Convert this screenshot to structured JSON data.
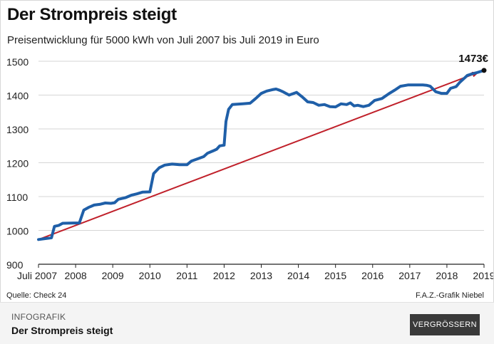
{
  "header": {
    "title": "Der Strompreis steigt",
    "subtitle": "Preisentwicklung für 5000 kWh von Juli 2007 bis Juli 2019 in Euro"
  },
  "chart_data": {
    "type": "line",
    "title": "Der Strompreis steigt",
    "subtitle": "Preisentwicklung für 5000 kWh von Juli 2007 bis Juli 2019 in Euro",
    "xlabel": "",
    "ylabel": "",
    "xlim": [
      2007.5,
      2019.5
    ],
    "ylim": [
      900,
      1500
    ],
    "yticks": [
      900,
      1000,
      1100,
      1200,
      1300,
      1400,
      1500
    ],
    "xtick_labels": [
      {
        "x": 2007.5,
        "label": "Juli 2007"
      },
      {
        "x": 2008.5,
        "label": "2008"
      },
      {
        "x": 2009.5,
        "label": "2009"
      },
      {
        "x": 2010.5,
        "label": "2010"
      },
      {
        "x": 2011.5,
        "label": "2011"
      },
      {
        "x": 2012.5,
        "label": "2012"
      },
      {
        "x": 2013.5,
        "label": "2013"
      },
      {
        "x": 2014.5,
        "label": "2014"
      },
      {
        "x": 2015.5,
        "label": "2015"
      },
      {
        "x": 2016.5,
        "label": "2016"
      },
      {
        "x": 2017.5,
        "label": "2017"
      },
      {
        "x": 2018.5,
        "label": "2018"
      },
      {
        "x": 2019.5,
        "label": "2019"
      }
    ],
    "grid": "horizontal",
    "series": [
      {
        "color": "#1f5fa8",
        "points": [
          [
            2007.5,
            973
          ],
          [
            2007.85,
            978
          ],
          [
            2007.93,
            1012
          ],
          [
            2008.05,
            1015
          ],
          [
            2008.15,
            1021
          ],
          [
            2008.45,
            1022
          ],
          [
            2008.6,
            1022
          ],
          [
            2008.72,
            1060
          ],
          [
            2008.85,
            1068
          ],
          [
            2009.0,
            1075
          ],
          [
            2009.15,
            1077
          ],
          [
            2009.3,
            1081
          ],
          [
            2009.45,
            1080
          ],
          [
            2009.55,
            1082
          ],
          [
            2009.65,
            1092
          ],
          [
            2009.85,
            1097
          ],
          [
            2010.0,
            1104
          ],
          [
            2010.15,
            1108
          ],
          [
            2010.3,
            1113
          ],
          [
            2010.5,
            1114
          ],
          [
            2010.6,
            1168
          ],
          [
            2010.75,
            1185
          ],
          [
            2010.9,
            1193
          ],
          [
            2011.1,
            1196
          ],
          [
            2011.3,
            1194
          ],
          [
            2011.5,
            1194
          ],
          [
            2011.62,
            1205
          ],
          [
            2011.8,
            1212
          ],
          [
            2011.95,
            1218
          ],
          [
            2012.05,
            1228
          ],
          [
            2012.2,
            1235
          ],
          [
            2012.3,
            1240
          ],
          [
            2012.38,
            1250
          ],
          [
            2012.5,
            1252
          ],
          [
            2012.55,
            1322
          ],
          [
            2012.62,
            1358
          ],
          [
            2012.72,
            1372
          ],
          [
            2013.0,
            1374
          ],
          [
            2013.2,
            1376
          ],
          [
            2013.35,
            1390
          ],
          [
            2013.5,
            1405
          ],
          [
            2013.65,
            1412
          ],
          [
            2013.8,
            1416
          ],
          [
            2013.9,
            1418
          ],
          [
            2014.0,
            1414
          ],
          [
            2014.1,
            1409
          ],
          [
            2014.25,
            1400
          ],
          [
            2014.45,
            1408
          ],
          [
            2014.6,
            1395
          ],
          [
            2014.75,
            1380
          ],
          [
            2014.9,
            1378
          ],
          [
            2015.05,
            1370
          ],
          [
            2015.2,
            1372
          ],
          [
            2015.35,
            1366
          ],
          [
            2015.5,
            1365
          ],
          [
            2015.65,
            1374
          ],
          [
            2015.8,
            1372
          ],
          [
            2015.9,
            1377
          ],
          [
            2016.0,
            1368
          ],
          [
            2016.1,
            1370
          ],
          [
            2016.25,
            1366
          ],
          [
            2016.4,
            1370
          ],
          [
            2016.55,
            1384
          ],
          [
            2016.75,
            1390
          ],
          [
            2016.95,
            1405
          ],
          [
            2017.1,
            1415
          ],
          [
            2017.25,
            1426
          ],
          [
            2017.45,
            1430
          ],
          [
            2017.65,
            1430
          ],
          [
            2017.85,
            1430
          ],
          [
            2017.95,
            1429
          ],
          [
            2018.05,
            1426
          ],
          [
            2018.2,
            1410
          ],
          [
            2018.35,
            1405
          ],
          [
            2018.5,
            1405
          ],
          [
            2018.6,
            1420
          ],
          [
            2018.75,
            1425
          ],
          [
            2018.85,
            1438
          ],
          [
            2018.95,
            1448
          ],
          [
            2019.05,
            1458
          ],
          [
            2019.15,
            1462
          ],
          [
            2019.3,
            1466
          ],
          [
            2019.5,
            1473
          ]
        ]
      }
    ],
    "trend_arrow": {
      "from": [
        2007.5,
        973
      ],
      "to": [
        2019.45,
        1473
      ],
      "color": "#c0202a"
    },
    "annotations": [
      {
        "x": 2019.5,
        "y": 1473,
        "text": "1473€"
      }
    ]
  },
  "source_text": "Quelle: Check 24",
  "credit_text": "F.A.Z.-Grafik Niebel",
  "footer": {
    "kicker": "INFOGRAFIK",
    "caption": "Der Strompreis steigt",
    "button_label": "VERGRÖSSERN"
  }
}
